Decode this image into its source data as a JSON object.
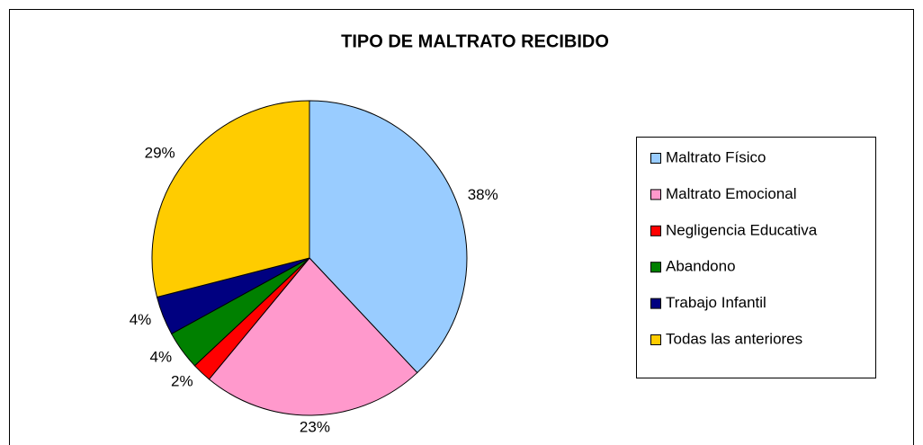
{
  "chart_data": {
    "type": "pie",
    "title": "TIPO DE MALTRATO RECIBIDO",
    "categories": [
      "Maltrato Físico",
      "Maltrato Emocional",
      "Negligencia Educativa",
      "Abandono",
      "Trabajo Infantil",
      "Todas las anteriores"
    ],
    "values": [
      38,
      23,
      2,
      4,
      4,
      29
    ],
    "value_labels": [
      "38%",
      "23%",
      "2%",
      "4%",
      "4%",
      "29%"
    ],
    "colors": [
      "#99ccff",
      "#ff99cc",
      "#ff0000",
      "#008000",
      "#000080",
      "#ffcc00"
    ],
    "legend": "right"
  }
}
